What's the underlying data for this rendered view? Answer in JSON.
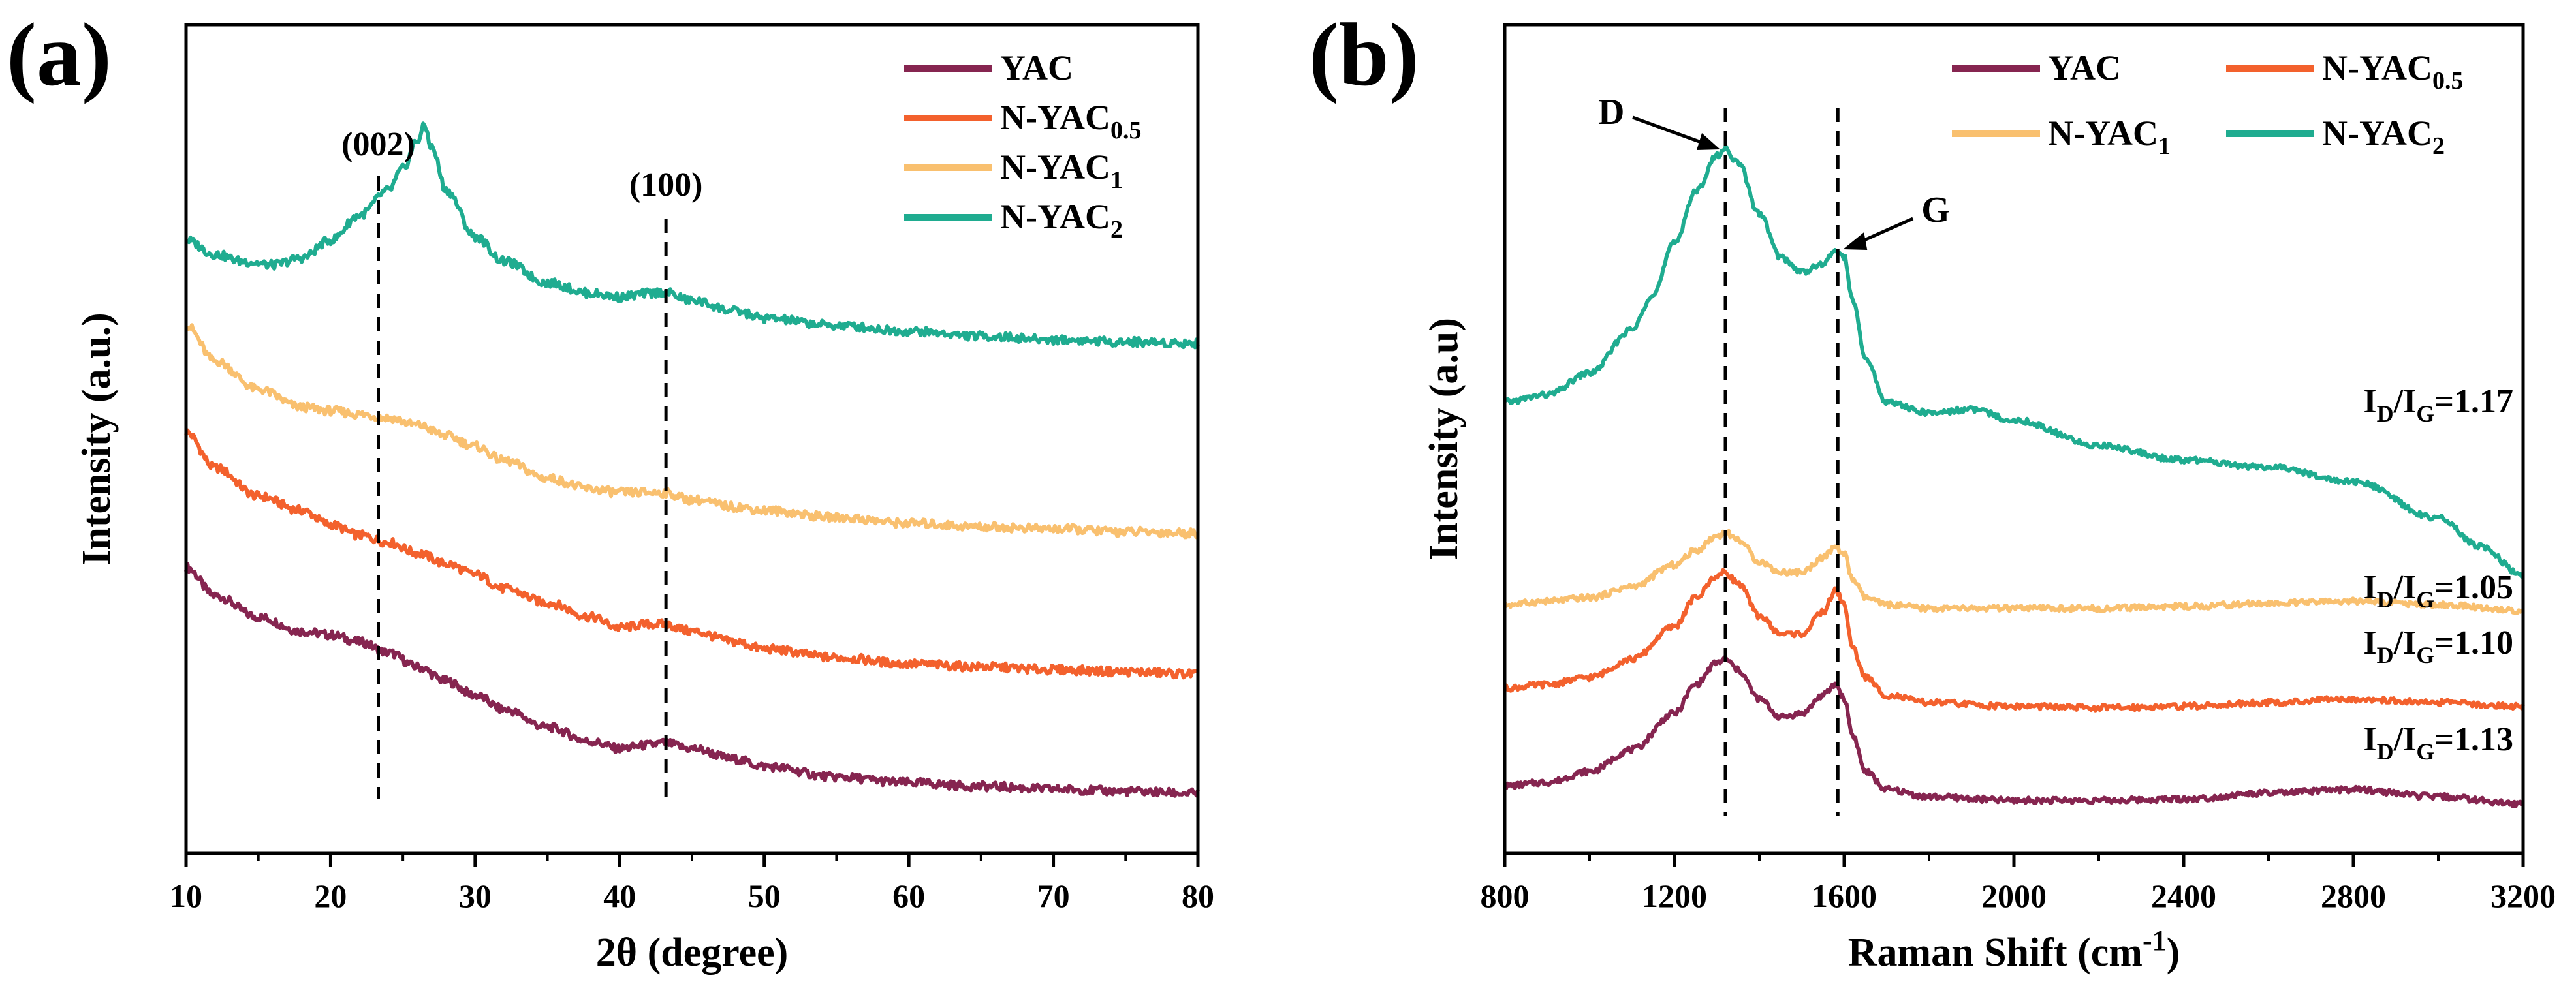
{
  "colors": {
    "YAC": "#862550",
    "N-YAC0.5": "#F3612D",
    "N-YAC1": "#F9C06F",
    "N-YAC2": "#1FAC90"
  },
  "chart_data": [
    {
      "panel": "(a)",
      "type": "line",
      "title": "",
      "xlabel": "2θ (degree)",
      "ylabel": "Intensity (a.u.)",
      "xlim": [
        10,
        80
      ],
      "ylim": [
        0,
        1
      ],
      "xticks": [
        "10",
        "20",
        "30",
        "40",
        "50",
        "60",
        "70",
        "80"
      ],
      "grid": false,
      "legend_position": "top-right",
      "legend": [
        {
          "base": "YAC",
          "sub": ""
        },
        {
          "base": "N-YAC",
          "sub": "0.5"
        },
        {
          "base": "N-YAC",
          "sub": "1"
        },
        {
          "base": "N-YAC",
          "sub": "2"
        }
      ],
      "annotations": [
        {
          "text": "(002)",
          "x": 23.3
        },
        {
          "text": "(100)",
          "x": 43.2
        }
      ],
      "series": [
        {
          "name": "YAC",
          "x": [
            10,
            12,
            15,
            18,
            20,
            22,
            24,
            26,
            28,
            30,
            32,
            35,
            38,
            40,
            42,
            43,
            45,
            48,
            50,
            55,
            60,
            65,
            70,
            75,
            80
          ],
          "values": [
            0.34,
            0.3,
            0.27,
            0.25,
            0.245,
            0.235,
            0.22,
            0.2,
            0.18,
            0.16,
            0.14,
            0.115,
            0.095,
            0.085,
            0.09,
            0.093,
            0.085,
            0.07,
            0.06,
            0.045,
            0.037,
            0.032,
            0.028,
            0.025,
            0.022
          ]
        },
        {
          "name": "N-YAC0.5",
          "x": [
            10,
            12,
            15,
            18,
            20,
            22,
            24,
            26,
            28,
            30,
            32,
            35,
            38,
            40,
            42,
            43,
            45,
            48,
            50,
            55,
            60,
            65,
            70,
            75,
            80
          ],
          "values": [
            0.53,
            0.48,
            0.44,
            0.42,
            0.4,
            0.385,
            0.375,
            0.36,
            0.345,
            0.33,
            0.31,
            0.29,
            0.27,
            0.255,
            0.26,
            0.26,
            0.25,
            0.235,
            0.225,
            0.213,
            0.204,
            0.2,
            0.196,
            0.193,
            0.19
          ]
        },
        {
          "name": "N-YAC1",
          "x": [
            10,
            12,
            15,
            18,
            20,
            22,
            24,
            26,
            28,
            30,
            32,
            35,
            38,
            40,
            42,
            43,
            45,
            48,
            50,
            55,
            60,
            65,
            70,
            75,
            80
          ],
          "values": [
            0.68,
            0.63,
            0.59,
            0.565,
            0.56,
            0.555,
            0.55,
            0.54,
            0.525,
            0.51,
            0.49,
            0.465,
            0.45,
            0.445,
            0.445,
            0.445,
            0.435,
            0.425,
            0.42,
            0.41,
            0.402,
            0.397,
            0.394,
            0.39,
            0.388
          ]
        },
        {
          "name": "N-YAC2",
          "x": [
            10,
            12,
            14,
            16,
            18,
            20,
            22,
            24,
            25,
            26,
            26.5,
            27,
            28,
            30,
            32,
            35,
            38,
            40,
            42,
            43,
            45,
            48,
            50,
            55,
            60,
            65,
            70,
            75,
            80
          ],
          "values": [
            0.8,
            0.78,
            0.77,
            0.765,
            0.775,
            0.8,
            0.835,
            0.87,
            0.9,
            0.94,
            0.96,
            0.93,
            0.87,
            0.805,
            0.77,
            0.74,
            0.725,
            0.72,
            0.725,
            0.727,
            0.715,
            0.7,
            0.69,
            0.68,
            0.672,
            0.665,
            0.66,
            0.657,
            0.655
          ]
        }
      ]
    },
    {
      "panel": "(b)",
      "type": "line",
      "title": "",
      "xlabel": "Raman Shift (cm",
      "xlabel_sup": "-1",
      "xlabel_tail": ")",
      "ylabel": "Intensity (a.u)",
      "xlim": [
        800,
        3200
      ],
      "ylim": [
        0,
        1
      ],
      "xticks": [
        "800",
        "1200",
        "1600",
        "2000",
        "2400",
        "2800",
        "3200"
      ],
      "grid": false,
      "legend_position": "top-right",
      "legend": [
        {
          "base": "YAC",
          "sub": ""
        },
        {
          "base": "N-YAC",
          "sub": "0.5"
        },
        {
          "base": "N-YAC",
          "sub": "1"
        },
        {
          "base": "N-YAC",
          "sub": "2"
        }
      ],
      "annotations": [
        {
          "text": "D",
          "x": 1320
        },
        {
          "text": "G",
          "x": 1585
        }
      ],
      "ratio_labels": [
        {
          "series": "N-YAC2",
          "sub1": "D",
          "sub2": "G",
          "value": "=1.17"
        },
        {
          "series": "N-YAC1",
          "sub1": "D",
          "sub2": "G",
          "value": "=1.05"
        },
        {
          "series": "N-YAC0.5",
          "sub1": "D",
          "sub2": "G",
          "value": "=1.10"
        },
        {
          "series": "YAC",
          "sub1": "D",
          "sub2": "G",
          "value": "=1.13"
        }
      ],
      "series": [
        {
          "name": "YAC",
          "x": [
            800,
            900,
            1000,
            1100,
            1200,
            1250,
            1300,
            1320,
            1350,
            1400,
            1450,
            1500,
            1550,
            1580,
            1600,
            1620,
            1650,
            1700,
            1800,
            2000,
            2200,
            2400,
            2600,
            2800,
            3000,
            3200
          ],
          "values": [
            0.05,
            0.055,
            0.07,
            0.1,
            0.15,
            0.19,
            0.22,
            0.225,
            0.21,
            0.17,
            0.145,
            0.15,
            0.175,
            0.19,
            0.17,
            0.12,
            0.07,
            0.045,
            0.035,
            0.03,
            0.03,
            0.032,
            0.04,
            0.045,
            0.035,
            0.025
          ]
        },
        {
          "name": "N-YAC0.5",
          "x": [
            800,
            900,
            1000,
            1100,
            1200,
            1250,
            1300,
            1320,
            1350,
            1400,
            1450,
            1500,
            1550,
            1580,
            1600,
            1620,
            1650,
            1700,
            1800,
            2000,
            2200,
            2400,
            2600,
            2800,
            3000,
            3200
          ],
          "values": [
            0.185,
            0.19,
            0.2,
            0.225,
            0.27,
            0.31,
            0.34,
            0.345,
            0.33,
            0.285,
            0.26,
            0.26,
            0.29,
            0.32,
            0.3,
            0.24,
            0.2,
            0.175,
            0.165,
            0.16,
            0.158,
            0.16,
            0.165,
            0.17,
            0.165,
            0.16
          ]
        },
        {
          "name": "N-YAC1",
          "x": [
            800,
            900,
            1000,
            1100,
            1200,
            1250,
            1300,
            1320,
            1350,
            1400,
            1450,
            1500,
            1550,
            1580,
            1600,
            1620,
            1650,
            1700,
            1800,
            2000,
            2200,
            2400,
            2600,
            2800,
            3000,
            3200
          ],
          "values": [
            0.3,
            0.305,
            0.31,
            0.325,
            0.355,
            0.375,
            0.395,
            0.4,
            0.39,
            0.36,
            0.345,
            0.345,
            0.365,
            0.38,
            0.37,
            0.335,
            0.31,
            0.3,
            0.295,
            0.295,
            0.295,
            0.298,
            0.302,
            0.305,
            0.3,
            0.292
          ]
        },
        {
          "name": "N-YAC2",
          "x": [
            800,
            900,
            1000,
            1100,
            1150,
            1200,
            1250,
            1300,
            1320,
            1350,
            1400,
            1450,
            1500,
            1550,
            1580,
            1600,
            1620,
            1650,
            1700,
            1800,
            1900,
            2000,
            2200,
            2400,
            2600,
            2800,
            3000,
            3100,
            3200
          ],
          "values": [
            0.58,
            0.59,
            0.62,
            0.68,
            0.73,
            0.8,
            0.87,
            0.92,
            0.93,
            0.91,
            0.84,
            0.78,
            0.76,
            0.77,
            0.79,
            0.78,
            0.72,
            0.64,
            0.58,
            0.565,
            0.57,
            0.555,
            0.52,
            0.5,
            0.49,
            0.47,
            0.42,
            0.38,
            0.34
          ]
        }
      ]
    }
  ]
}
